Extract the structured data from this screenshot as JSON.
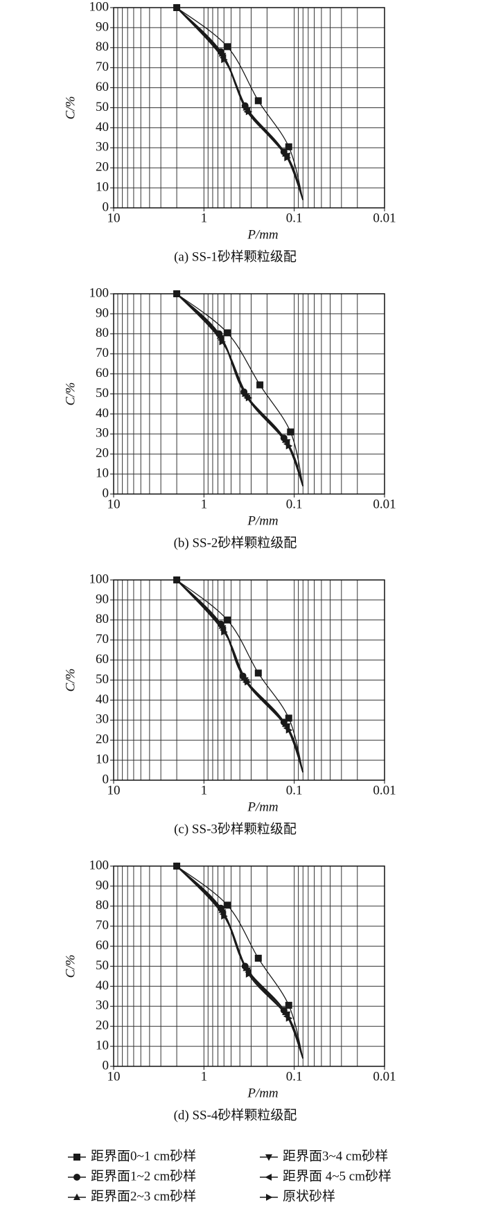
{
  "chart_data": [
    {
      "type": "line",
      "caption": "(a) SS-1砂样颗粒级配",
      "xlabel": "P/mm",
      "ylabel": "C/%",
      "log_x": true,
      "grid": true,
      "minor_grid": true,
      "xlim": [
        10,
        0.01
      ],
      "xticks": [
        10,
        1,
        0.1,
        0.01
      ],
      "ylim": [
        0,
        100
      ],
      "yticks": [
        0,
        10,
        20,
        30,
        40,
        50,
        60,
        70,
        80,
        90,
        100
      ],
      "series": [
        {
          "marker": "square",
          "color": "#1a1a1a",
          "x": [
            2,
            0.55,
            0.25,
            0.115,
            0.08
          ],
          "values": [
            100,
            80.5,
            53.5,
            30.5,
            4
          ]
        },
        {
          "marker": "circle",
          "color": "#1a1a1a",
          "x": [
            2,
            0.65,
            0.35,
            0.13,
            0.08
          ],
          "values": [
            100,
            78,
            51,
            28,
            4
          ]
        },
        {
          "marker": "triangle-up",
          "color": "#1a1a1a",
          "x": [
            2,
            0.63,
            0.34,
            0.125,
            0.08
          ],
          "values": [
            100,
            77,
            50,
            27,
            4
          ]
        },
        {
          "marker": "triangle-down",
          "color": "#1a1a1a",
          "x": [
            2,
            0.62,
            0.33,
            0.12,
            0.08
          ],
          "values": [
            100,
            76,
            49,
            26,
            4
          ]
        },
        {
          "marker": "triangle-left",
          "color": "#1a1a1a",
          "x": [
            2,
            0.61,
            0.33,
            0.12,
            0.08
          ],
          "values": [
            100,
            75,
            48,
            26,
            4
          ]
        },
        {
          "marker": "triangle-right",
          "color": "#1a1a1a",
          "x": [
            2,
            0.6,
            0.32,
            0.12,
            0.08
          ],
          "values": [
            100,
            74,
            48,
            25,
            4
          ]
        }
      ]
    },
    {
      "type": "line",
      "caption": "(b) SS-2砂样颗粒级配",
      "xlabel": "P/mm",
      "ylabel": "C/%",
      "log_x": true,
      "grid": true,
      "minor_grid": true,
      "xlim": [
        10,
        0.01
      ],
      "xticks": [
        10,
        1,
        0.1,
        0.01
      ],
      "ylim": [
        0,
        100
      ],
      "yticks": [
        0,
        10,
        20,
        30,
        40,
        50,
        60,
        70,
        80,
        90,
        100
      ],
      "series": [
        {
          "marker": "square",
          "color": "#1a1a1a",
          "x": [
            2,
            0.55,
            0.24,
            0.11,
            0.08
          ],
          "values": [
            100,
            80.5,
            54.5,
            31,
            4
          ]
        },
        {
          "marker": "circle",
          "color": "#1a1a1a",
          "x": [
            2,
            0.68,
            0.36,
            0.13,
            0.08
          ],
          "values": [
            100,
            80,
            51,
            28,
            4
          ]
        },
        {
          "marker": "triangle-up",
          "color": "#1a1a1a",
          "x": [
            2,
            0.66,
            0.35,
            0.125,
            0.08
          ],
          "values": [
            100,
            79,
            50,
            27,
            4
          ]
        },
        {
          "marker": "triangle-down",
          "color": "#1a1a1a",
          "x": [
            2,
            0.65,
            0.34,
            0.12,
            0.08
          ],
          "values": [
            100,
            78,
            49,
            26,
            4
          ]
        },
        {
          "marker": "triangle-left",
          "color": "#1a1a1a",
          "x": [
            2,
            0.64,
            0.33,
            0.12,
            0.08
          ],
          "values": [
            100,
            77,
            48,
            25,
            4
          ]
        },
        {
          "marker": "triangle-right",
          "color": "#1a1a1a",
          "x": [
            2,
            0.63,
            0.32,
            0.115,
            0.08
          ],
          "values": [
            100,
            76,
            48,
            24,
            4
          ]
        }
      ]
    },
    {
      "type": "line",
      "caption": "(c) SS-3砂样颗粒级配",
      "xlabel": "P/mm",
      "ylabel": "C/%",
      "log_x": true,
      "grid": true,
      "minor_grid": true,
      "xlim": [
        10,
        0.01
      ],
      "xticks": [
        10,
        1,
        0.1,
        0.01
      ],
      "ylim": [
        0,
        100
      ],
      "yticks": [
        0,
        10,
        20,
        30,
        40,
        50,
        60,
        70,
        80,
        90,
        100
      ],
      "series": [
        {
          "marker": "square",
          "color": "#1a1a1a",
          "x": [
            2,
            0.55,
            0.25,
            0.115,
            0.08
          ],
          "values": [
            100,
            80,
            53.5,
            31,
            4
          ]
        },
        {
          "marker": "circle",
          "color": "#1a1a1a",
          "x": [
            2,
            0.65,
            0.37,
            0.13,
            0.08
          ],
          "values": [
            100,
            78,
            52,
            29,
            4
          ]
        },
        {
          "marker": "triangle-up",
          "color": "#1a1a1a",
          "x": [
            2,
            0.63,
            0.36,
            0.125,
            0.08
          ],
          "values": [
            100,
            77,
            51,
            28,
            4
          ]
        },
        {
          "marker": "triangle-down",
          "color": "#1a1a1a",
          "x": [
            2,
            0.62,
            0.35,
            0.12,
            0.08
          ],
          "values": [
            100,
            76,
            50,
            27,
            4
          ]
        },
        {
          "marker": "triangle-left",
          "color": "#1a1a1a",
          "x": [
            2,
            0.61,
            0.34,
            0.12,
            0.08
          ],
          "values": [
            100,
            75,
            49,
            26,
            4
          ]
        },
        {
          "marker": "triangle-right",
          "color": "#1a1a1a",
          "x": [
            2,
            0.6,
            0.33,
            0.115,
            0.08
          ],
          "values": [
            100,
            74,
            49,
            25,
            4
          ]
        }
      ]
    },
    {
      "type": "line",
      "caption": "(d) SS-4砂样颗粒级配",
      "xlabel": "P/mm",
      "ylabel": "C/%",
      "log_x": true,
      "grid": true,
      "minor_grid": true,
      "xlim": [
        10,
        0.01
      ],
      "xticks": [
        10,
        1,
        0.1,
        0.01
      ],
      "ylim": [
        0,
        100
      ],
      "yticks": [
        0,
        10,
        20,
        30,
        40,
        50,
        60,
        70,
        80,
        90,
        100
      ],
      "series": [
        {
          "marker": "square",
          "color": "#1a1a1a",
          "x": [
            2,
            0.55,
            0.25,
            0.115,
            0.08
          ],
          "values": [
            100,
            80.5,
            54,
            30.5,
            4
          ]
        },
        {
          "marker": "circle",
          "color": "#1a1a1a",
          "x": [
            2,
            0.65,
            0.35,
            0.13,
            0.08
          ],
          "values": [
            100,
            79,
            50,
            28,
            4
          ]
        },
        {
          "marker": "triangle-up",
          "color": "#1a1a1a",
          "x": [
            2,
            0.63,
            0.34,
            0.125,
            0.08
          ],
          "values": [
            100,
            78,
            49,
            27,
            4
          ]
        },
        {
          "marker": "triangle-down",
          "color": "#1a1a1a",
          "x": [
            2,
            0.62,
            0.33,
            0.12,
            0.08
          ],
          "values": [
            100,
            77,
            48,
            26,
            4
          ]
        },
        {
          "marker": "triangle-left",
          "color": "#1a1a1a",
          "x": [
            2,
            0.61,
            0.32,
            0.12,
            0.08
          ],
          "values": [
            100,
            76,
            47,
            25,
            4
          ]
        },
        {
          "marker": "triangle-right",
          "color": "#1a1a1a",
          "x": [
            2,
            0.6,
            0.32,
            0.115,
            0.08
          ],
          "values": [
            100,
            75,
            46,
            24,
            4
          ]
        }
      ]
    }
  ],
  "legend": [
    "距界面0~1 cm砂样",
    "距界面1~2 cm砂样",
    "距界面2~3 cm砂样",
    "距界面3~4 cm砂样",
    "距界面 4~5 cm砂样",
    "原状砂样"
  ]
}
